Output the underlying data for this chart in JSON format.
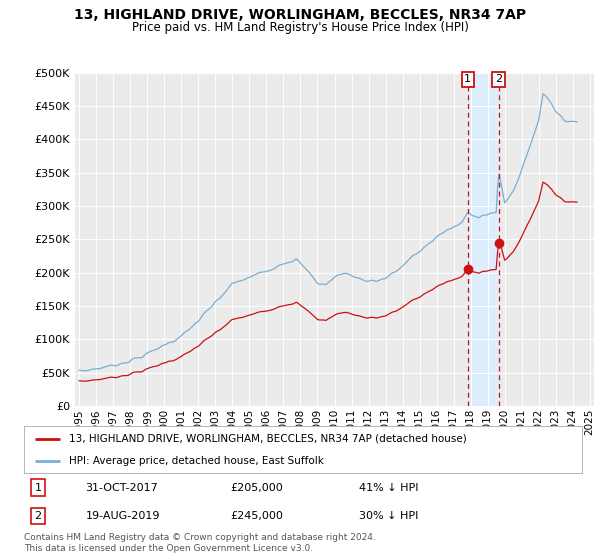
{
  "title": "13, HIGHLAND DRIVE, WORLINGHAM, BECCLES, NR34 7AP",
  "subtitle": "Price paid vs. HM Land Registry's House Price Index (HPI)",
  "ytick_values": [
    0,
    50000,
    100000,
    150000,
    200000,
    250000,
    300000,
    350000,
    400000,
    450000,
    500000
  ],
  "ylim": [
    0,
    500000
  ],
  "hpi_color": "#7aadd4",
  "price_color": "#cc1111",
  "shade_color": "#ddeeff",
  "background_color": "#ebebeb",
  "legend_label_price": "13, HIGHLAND DRIVE, WORLINGHAM, BECCLES, NR34 7AP (detached house)",
  "legend_label_hpi": "HPI: Average price, detached house, East Suffolk",
  "annotation1_label": "1",
  "annotation1_date": "31-OCT-2017",
  "annotation1_price": "£205,000",
  "annotation1_note": "41% ↓ HPI",
  "annotation2_label": "2",
  "annotation2_date": "19-AUG-2019",
  "annotation2_price": "£245,000",
  "annotation2_note": "30% ↓ HPI",
  "footnote": "Contains HM Land Registry data © Crown copyright and database right 2024.\nThis data is licensed under the Open Government Licence v3.0.",
  "sale_years": [
    2017.833,
    2019.639
  ],
  "sale_prices": [
    205000,
    245000
  ],
  "xtick_years": [
    1995,
    1996,
    1997,
    1998,
    1999,
    2000,
    2001,
    2002,
    2003,
    2004,
    2005,
    2006,
    2007,
    2008,
    2009,
    2010,
    2011,
    2012,
    2013,
    2014,
    2015,
    2016,
    2017,
    2018,
    2019,
    2020,
    2021,
    2022,
    2023,
    2024,
    2025
  ],
  "xlim": [
    1994.75,
    2025.25
  ]
}
